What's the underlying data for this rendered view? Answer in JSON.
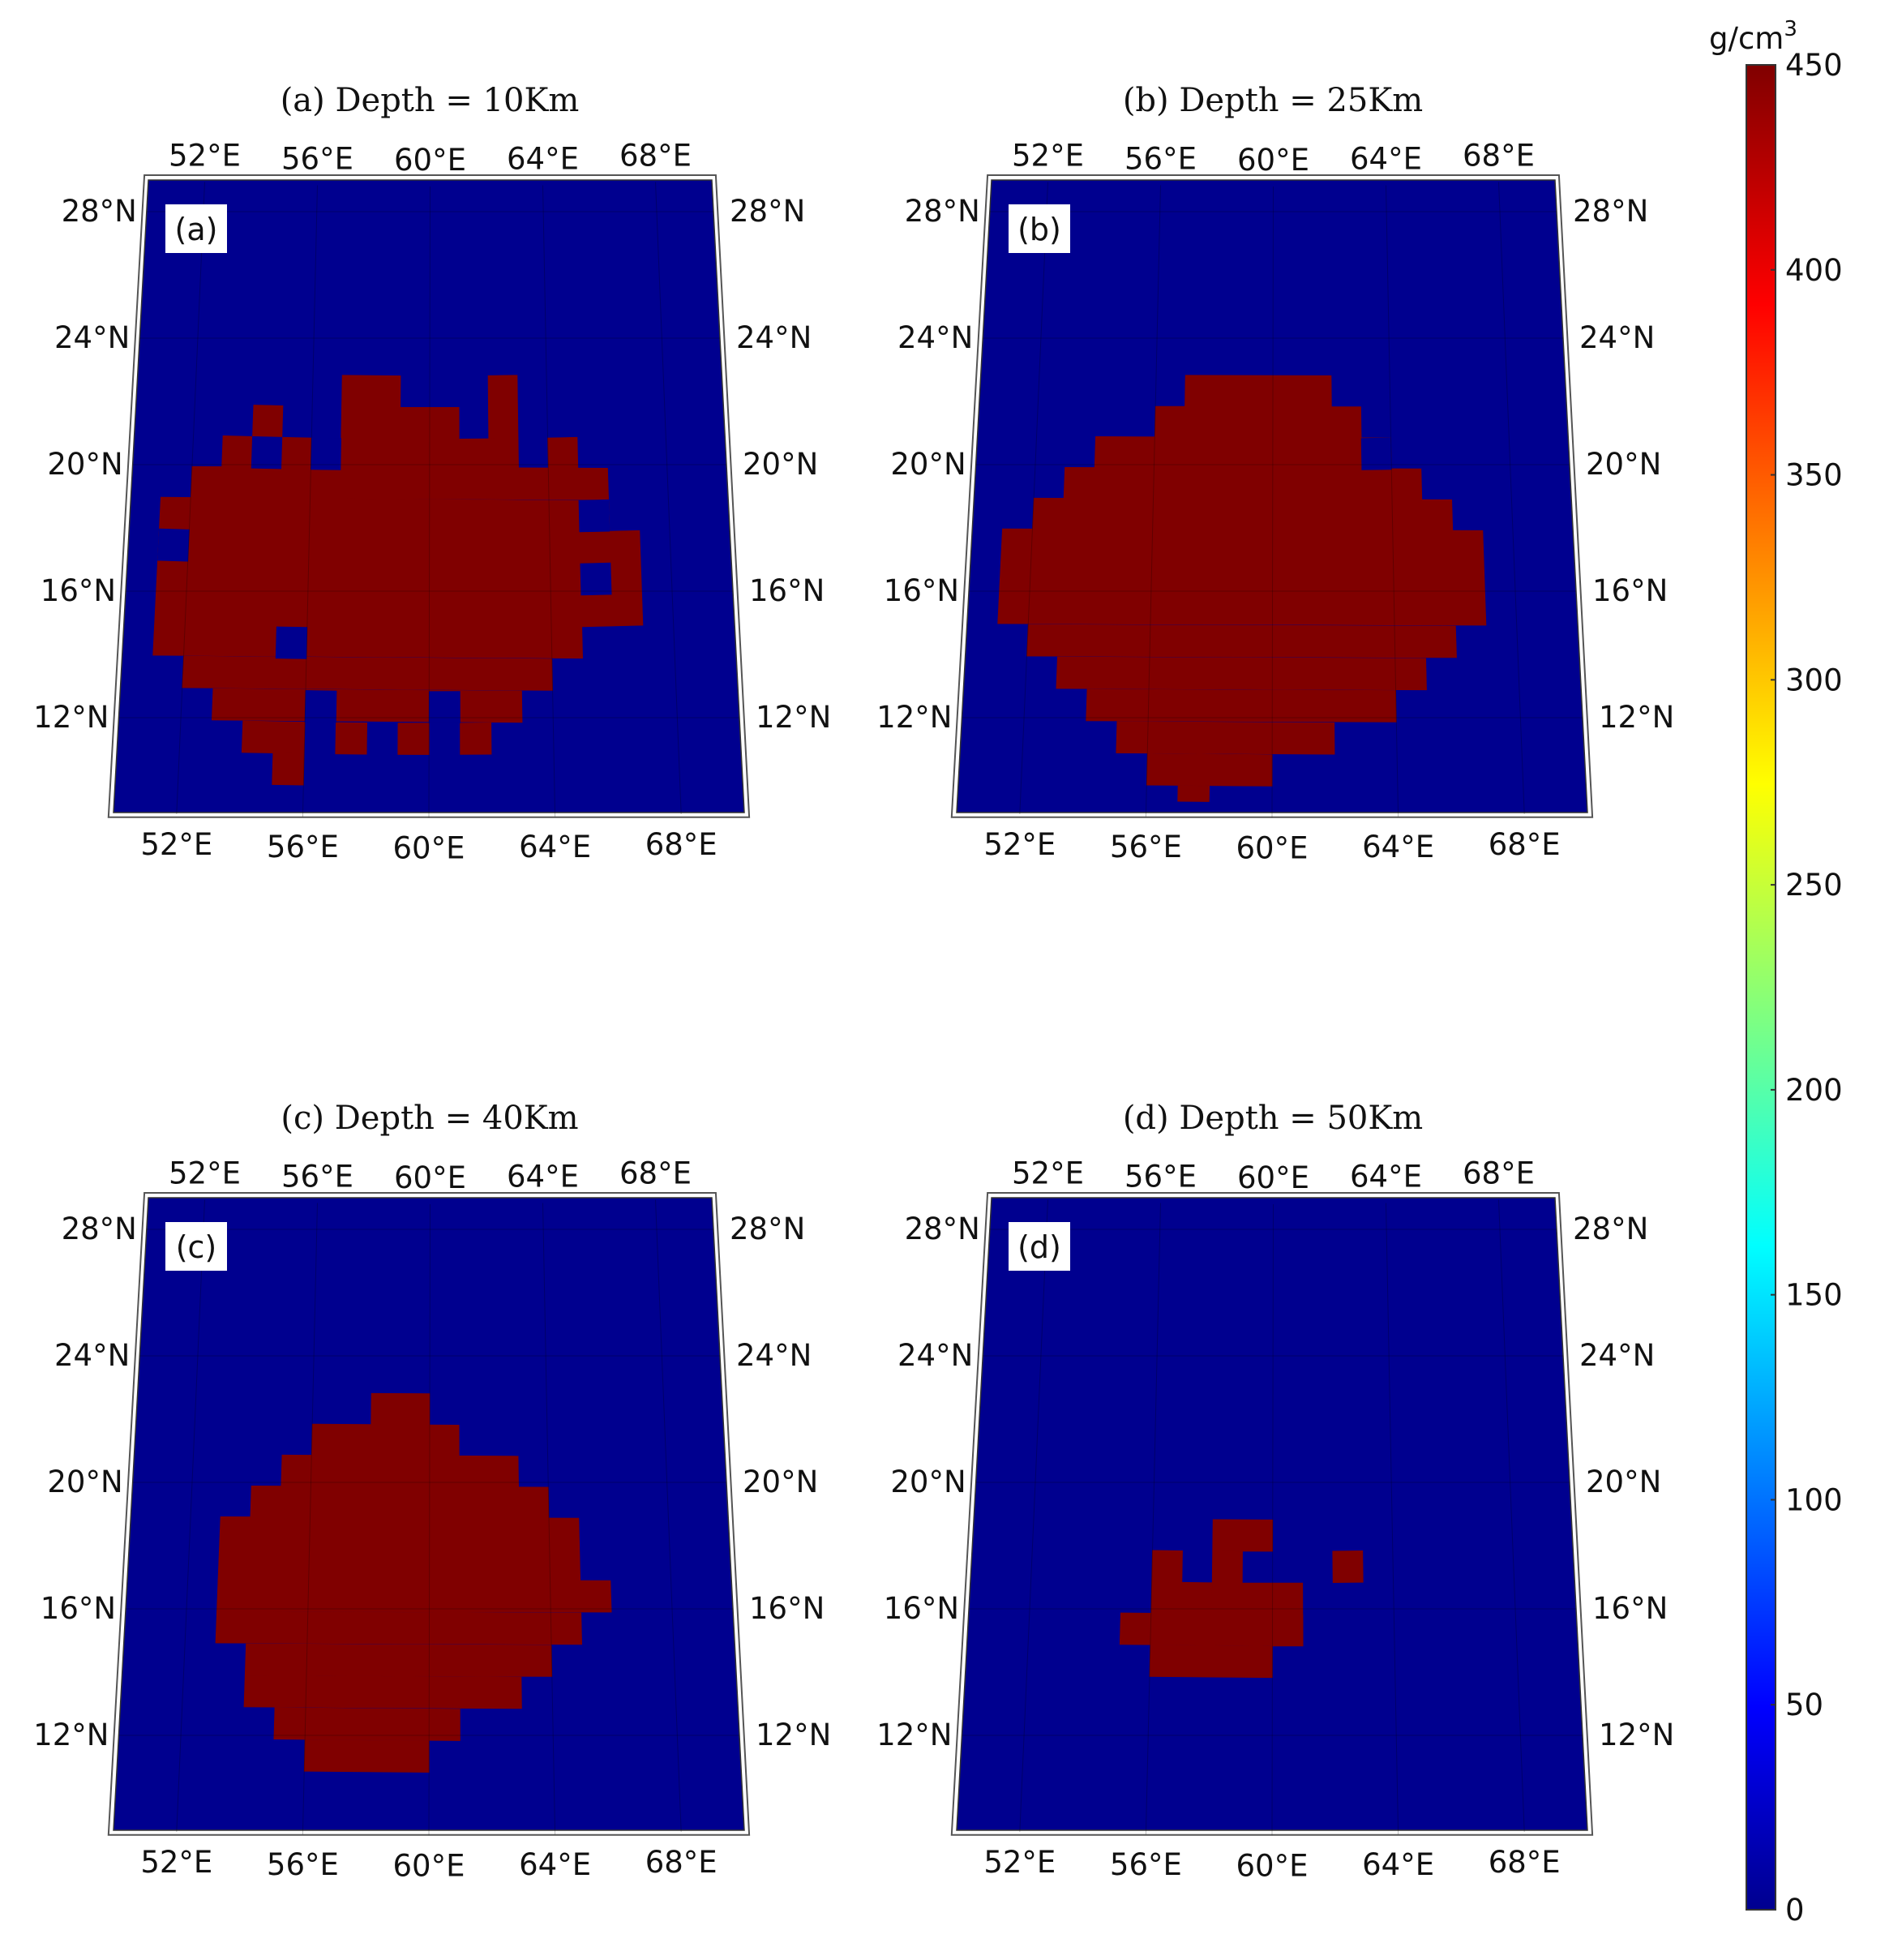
{
  "chart_data": {
    "type": "heatmap",
    "colorbar": {
      "unit": "g/cm",
      "unit_sup": "3",
      "min": 0,
      "max": 450,
      "ticks": [
        0,
        50,
        100,
        150,
        200,
        250,
        300,
        350,
        400,
        450
      ],
      "colormap": "jet"
    },
    "colors": {
      "low": "#00008f",
      "high": "#800000"
    },
    "lon_range": [
      50,
      70
    ],
    "lat_range": [
      9,
      29
    ],
    "lon_ticks": [
      "52°E",
      "56°E",
      "60°E",
      "64°E",
      "68°E"
    ],
    "lat_ticks": [
      "12°N",
      "16°N",
      "20°N",
      "24°N",
      "28°N"
    ],
    "panels": [
      {
        "title": "(a) Depth = 10Km",
        "tag": "(a)",
        "cells": [
          [
            54.0,
            21.0,
            55.0,
            22.0
          ],
          [
            57.0,
            21.0,
            59.0,
            23.0
          ],
          [
            59.0,
            21.0,
            61.0,
            22.0
          ],
          [
            62.0,
            21.0,
            63.0,
            23.0
          ],
          [
            53.0,
            20.0,
            54.0,
            21.0
          ],
          [
            55.0,
            20.0,
            56.0,
            21.0
          ],
          [
            57.0,
            20.0,
            61.0,
            21.0
          ],
          [
            61.0,
            20.0,
            63.0,
            21.0
          ],
          [
            64.0,
            20.0,
            65.0,
            21.0
          ],
          [
            52.0,
            19.0,
            66.0,
            20.0
          ],
          [
            51.0,
            14.0,
            65.0,
            19.0
          ],
          [
            65.0,
            18.0,
            66.0,
            19.0
          ],
          [
            65.0,
            15.0,
            67.0,
            18.0
          ],
          [
            65.0,
            17.0,
            66.0,
            18.0
          ],
          [
            52.0,
            13.0,
            64.0,
            14.0
          ],
          [
            53.0,
            12.0,
            63.0,
            13.0
          ],
          [
            54.0,
            11.0,
            56.0,
            12.0
          ],
          [
            57.0,
            11.0,
            58.0,
            12.0
          ],
          [
            59.0,
            11.0,
            60.0,
            12.0
          ],
          [
            61.0,
            11.0,
            62.0,
            12.0
          ],
          [
            55.0,
            10.0,
            56.0,
            11.0
          ]
        ],
        "holes": [
          [
            54.0,
            20.0,
            55.0,
            21.0
          ],
          [
            56.0,
            20.0,
            57.0,
            21.0
          ],
          [
            65.0,
            18.0,
            66.0,
            19.0
          ],
          [
            65.0,
            16.0,
            66.0,
            17.0
          ],
          [
            51.0,
            17.0,
            52.0,
            18.0
          ],
          [
            55.0,
            14.0,
            56.0,
            15.0
          ],
          [
            56.0,
            12.0,
            57.0,
            13.0
          ],
          [
            60.0,
            12.0,
            61.0,
            13.0
          ]
        ]
      },
      {
        "title": "(b) Depth = 25Km",
        "tag": "(b)",
        "cells": [
          [
            57.0,
            22.0,
            62.0,
            23.0
          ],
          [
            56.0,
            21.0,
            63.0,
            22.0
          ],
          [
            54.0,
            20.0,
            64.0,
            21.0
          ],
          [
            53.0,
            19.0,
            65.0,
            20.0
          ],
          [
            52.0,
            18.0,
            66.0,
            19.0
          ],
          [
            51.0,
            15.0,
            67.0,
            18.0
          ],
          [
            52.0,
            14.0,
            66.0,
            15.0
          ],
          [
            53.0,
            13.0,
            65.0,
            14.0
          ],
          [
            54.0,
            12.0,
            64.0,
            13.0
          ],
          [
            55.0,
            11.0,
            62.0,
            12.0
          ],
          [
            56.0,
            10.0,
            60.0,
            11.0
          ],
          [
            57.0,
            9.5,
            58.0,
            10.0
          ]
        ],
        "holes": [
          [
            63.0,
            20.0,
            64.0,
            21.0
          ]
        ]
      },
      {
        "title": "(c) Depth = 40Km",
        "tag": "(c)",
        "cells": [
          [
            58.0,
            22.0,
            60.0,
            23.0
          ],
          [
            56.0,
            21.0,
            61.0,
            22.0
          ],
          [
            55.0,
            20.0,
            63.0,
            21.0
          ],
          [
            54.0,
            19.0,
            64.0,
            20.0
          ],
          [
            53.0,
            17.0,
            65.0,
            19.0
          ],
          [
            53.0,
            16.0,
            66.0,
            17.0
          ],
          [
            53.0,
            15.0,
            65.0,
            16.0
          ],
          [
            54.0,
            14.0,
            64.0,
            15.0
          ],
          [
            54.0,
            13.0,
            63.0,
            14.0
          ],
          [
            55.0,
            12.0,
            61.0,
            13.0
          ],
          [
            56.0,
            11.0,
            60.0,
            12.0
          ]
        ],
        "holes": []
      },
      {
        "title": "(d) Depth = 50Km",
        "tag": "(d)",
        "cells": [
          [
            58.0,
            18.0,
            60.0,
            19.0
          ],
          [
            56.0,
            17.0,
            57.0,
            18.0
          ],
          [
            58.0,
            16.0,
            59.0,
            18.0
          ],
          [
            62.0,
            17.0,
            63.0,
            18.0
          ],
          [
            56.0,
            16.0,
            58.0,
            17.0
          ],
          [
            59.0,
            16.0,
            60.0,
            17.0
          ],
          [
            60.0,
            15.0,
            61.0,
            17.0
          ],
          [
            55.0,
            15.0,
            61.0,
            16.0
          ],
          [
            56.0,
            14.0,
            60.0,
            15.0
          ]
        ],
        "holes": []
      }
    ]
  }
}
